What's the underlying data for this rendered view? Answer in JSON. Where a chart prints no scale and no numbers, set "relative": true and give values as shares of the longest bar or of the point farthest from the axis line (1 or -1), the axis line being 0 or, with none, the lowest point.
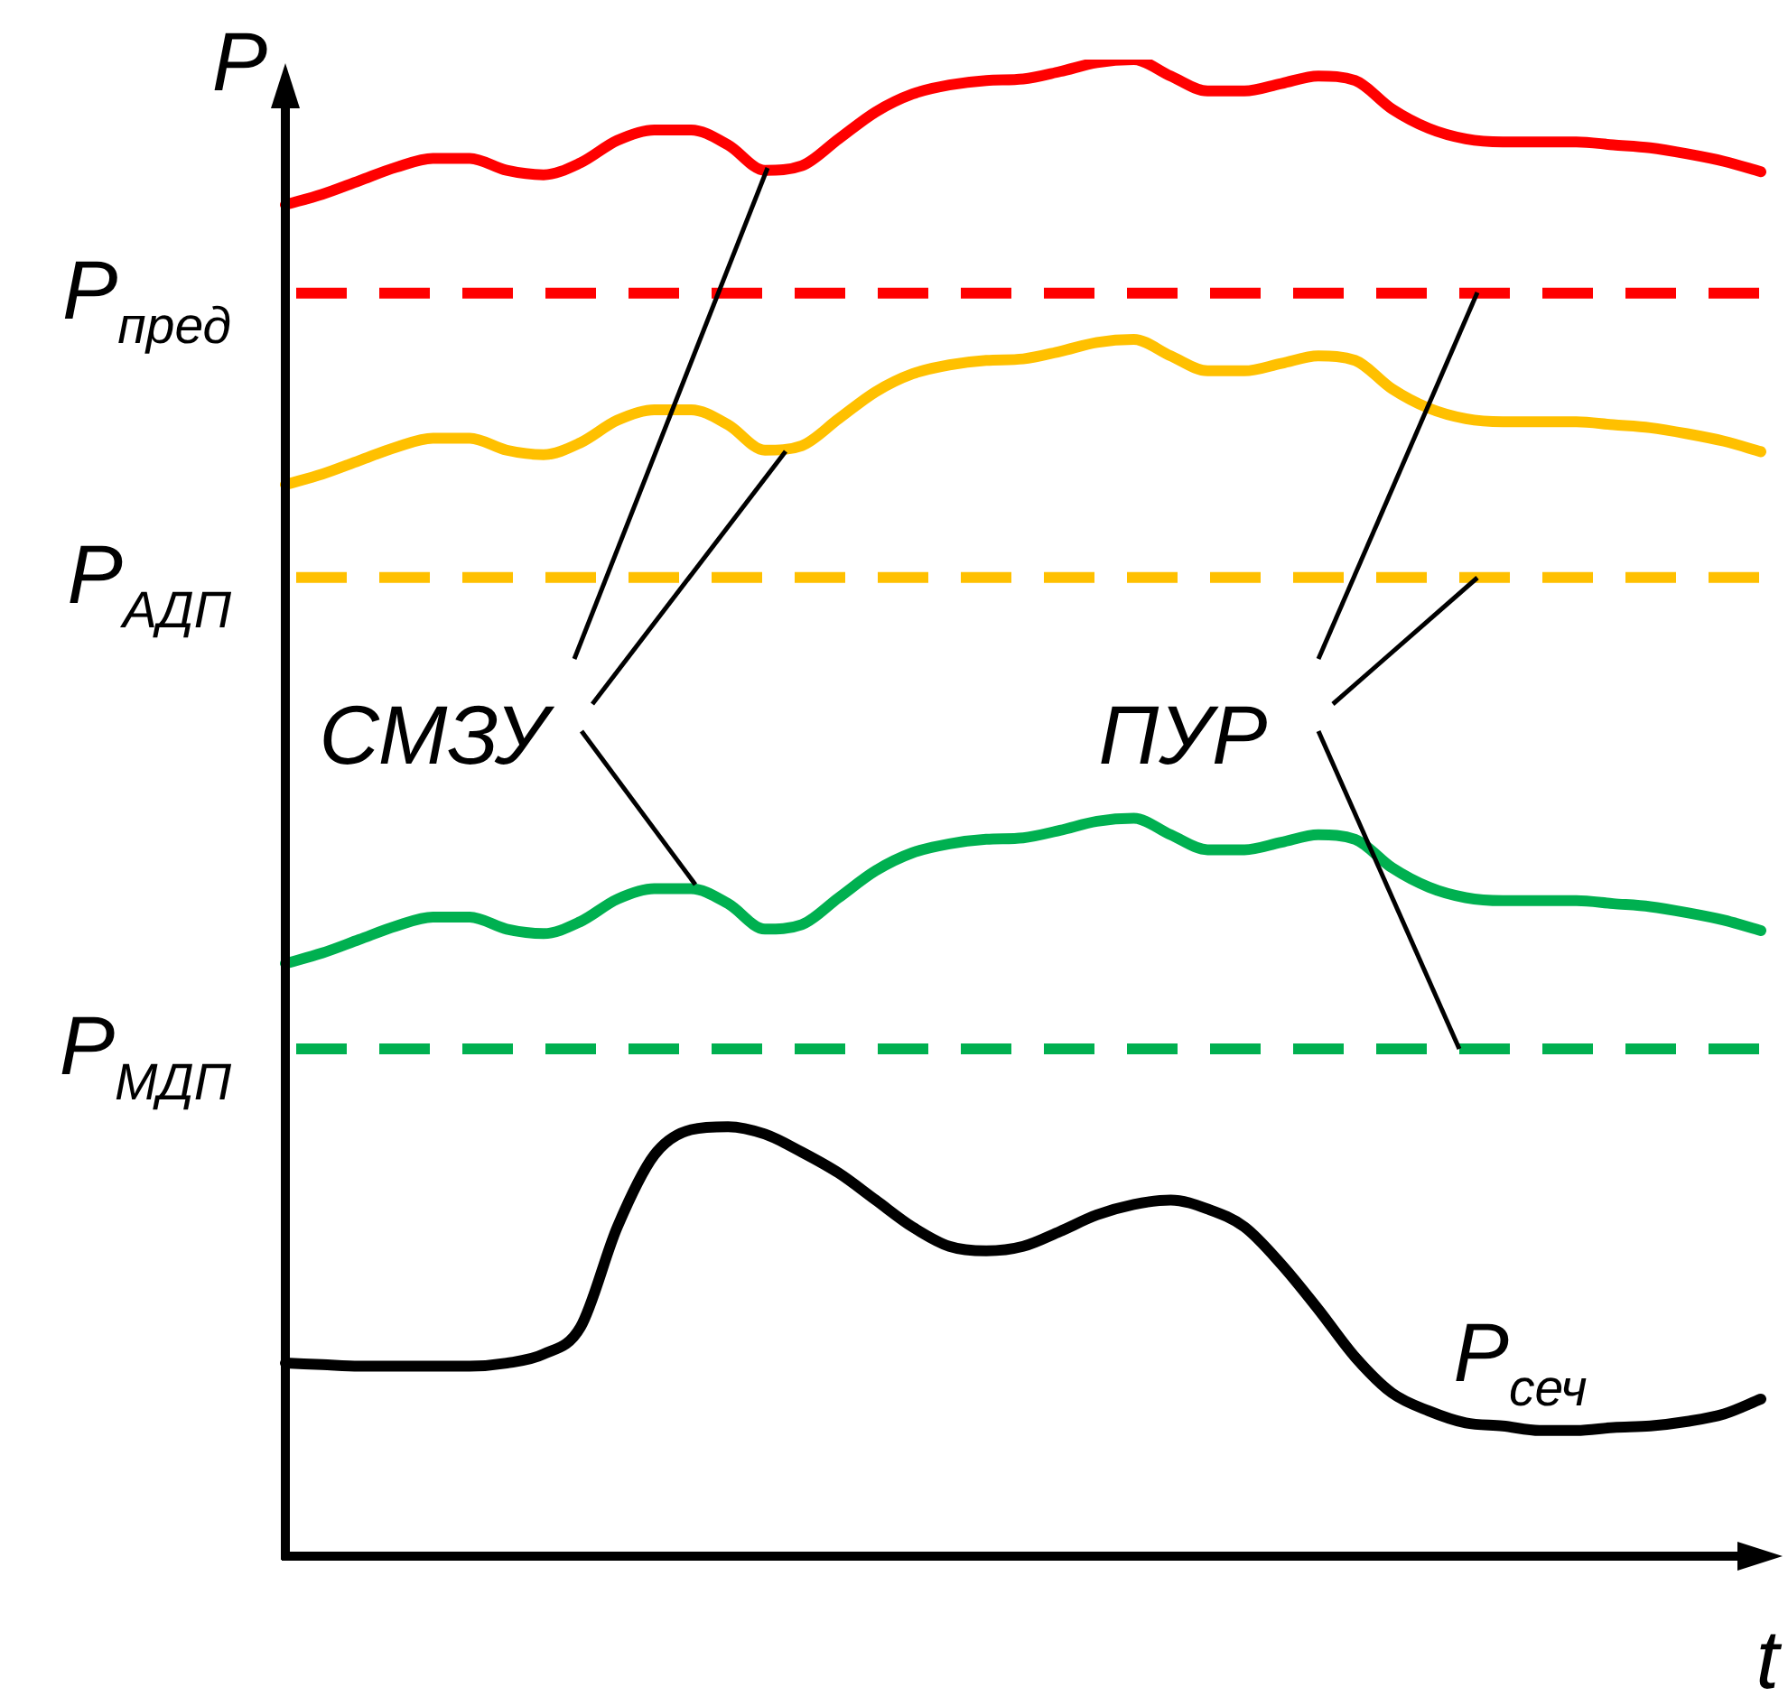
{
  "chart_data": {
    "type": "line",
    "relative": true,
    "xlabel": "t",
    "ylabel": "P",
    "legend": false,
    "marker": "none",
    "categories": [
      null,
      null,
      null,
      null,
      null,
      null,
      null,
      null,
      null,
      null,
      null,
      null,
      null,
      null,
      null,
      null,
      null,
      null,
      null,
      null,
      null,
      null,
      null,
      null,
      null,
      null,
      null,
      null,
      null,
      null,
      null,
      null,
      null,
      null,
      null,
      null,
      null,
      null,
      null,
      null,
      null
    ],
    "series": [
      {
        "color": "#ff0000",
        "values": [
          0.903,
          0.91,
          0.919,
          0.928,
          0.934,
          0.934,
          0.926,
          0.923,
          0.931,
          0.946,
          0.953,
          0.953,
          0.943,
          0.926,
          0.929,
          0.947,
          0.965,
          0.977,
          0.983,
          0.986,
          0.987,
          0.992,
          0.998,
          1,
          0.989,
          0.979,
          0.979,
          0.984,
          0.989,
          0.986,
          0.967,
          0.954,
          0.947,
          0.945,
          0.945,
          0.945,
          0.943,
          0.941,
          0.937,
          0.932,
          0.925
        ]
      },
      {
        "color": "#ffc000",
        "values": [
          0.716,
          0.723,
          0.732,
          0.741,
          0.747,
          0.747,
          0.739,
          0.736,
          0.744,
          0.759,
          0.766,
          0.766,
          0.756,
          0.739,
          0.742,
          0.76,
          0.778,
          0.79,
          0.796,
          0.799,
          0.8,
          0.805,
          0.811,
          0.813,
          0.802,
          0.792,
          0.792,
          0.797,
          0.802,
          0.799,
          0.78,
          0.767,
          0.76,
          0.758,
          0.758,
          0.758,
          0.756,
          0.754,
          0.75,
          0.745,
          0.738
        ]
      },
      {
        "color": "#00b050",
        "values": [
          0.396,
          0.403,
          0.412,
          0.421,
          0.427,
          0.427,
          0.419,
          0.416,
          0.424,
          0.439,
          0.446,
          0.446,
          0.436,
          0.419,
          0.422,
          0.44,
          0.458,
          0.47,
          0.476,
          0.479,
          0.48,
          0.485,
          0.491,
          0.493,
          0.482,
          0.472,
          0.472,
          0.477,
          0.482,
          0.479,
          0.46,
          0.447,
          0.44,
          0.438,
          0.438,
          0.438,
          0.436,
          0.434,
          0.43,
          0.425,
          0.418
        ]
      },
      {
        "name": "P$_{сеч}$",
        "color": "#000000",
        "values": [
          0.129,
          0.128,
          0.127,
          0.127,
          0.127,
          0.127,
          0.129,
          0.135,
          0.153,
          0.22,
          0.268,
          0.285,
          0.287,
          0.282,
          0.27,
          0.256,
          0.238,
          0.22,
          0.207,
          0.204,
          0.207,
          0.217,
          0.228,
          0.235,
          0.238,
          0.232,
          0.22,
          0.195,
          0.165,
          0.133,
          0.109,
          0.097,
          0.089,
          0.087,
          0.084,
          0.084,
          0.086,
          0.087,
          0.09,
          0.095,
          0.105
        ]
      }
    ],
    "ref_lines": [
      {
        "axis": "y",
        "value": 0.844,
        "label": "P$_{пред}$",
        "color": "#ff0000",
        "line_style": "dashed"
      },
      {
        "axis": "y",
        "value": 0.654,
        "label": "P$_{АДП}$",
        "color": "#ffc000",
        "line_style": "dashed"
      },
      {
        "axis": "y",
        "value": 0.339,
        "label": "P$_{МДП}$",
        "color": "#00b050",
        "line_style": "dashed"
      }
    ],
    "annotations": [
      "СМЗУ",
      "ПУР"
    ]
  }
}
